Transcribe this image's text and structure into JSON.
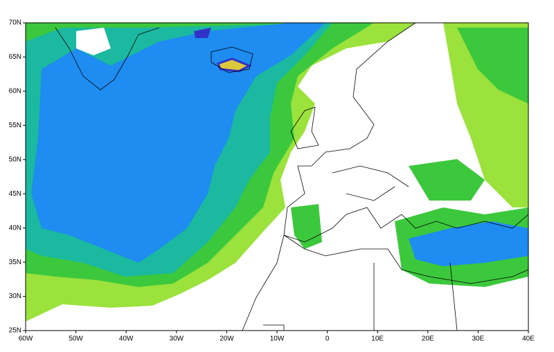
{
  "map": {
    "xlim": [
      -60,
      40
    ],
    "ylim": [
      25,
      70
    ],
    "xticks": [
      {
        "value": -60,
        "label": "60W"
      },
      {
        "value": -50,
        "label": "50W"
      },
      {
        "value": -40,
        "label": "40W"
      },
      {
        "value": -30,
        "label": "30W"
      },
      {
        "value": -20,
        "label": "20W"
      },
      {
        "value": -10,
        "label": "10W"
      },
      0,
      {
        "value": 10,
        "label": "10E"
      },
      {
        "value": 20,
        "label": "20E"
      },
      {
        "value": 30,
        "label": "30E"
      },
      {
        "value": 40,
        "label": "40E"
      }
    ],
    "yticks": [
      {
        "value": 25,
        "label": "25N"
      },
      {
        "value": 30,
        "label": "30N"
      },
      {
        "value": 35,
        "label": "35N"
      },
      {
        "value": 40,
        "label": "40N"
      },
      {
        "value": 45,
        "label": "45N"
      },
      {
        "value": 50,
        "label": "50N"
      },
      {
        "value": 55,
        "label": "55N"
      },
      {
        "value": 60,
        "label": "60N"
      },
      {
        "value": 65,
        "label": "65N"
      },
      {
        "value": 70,
        "label": "70N"
      }
    ]
  }
}
